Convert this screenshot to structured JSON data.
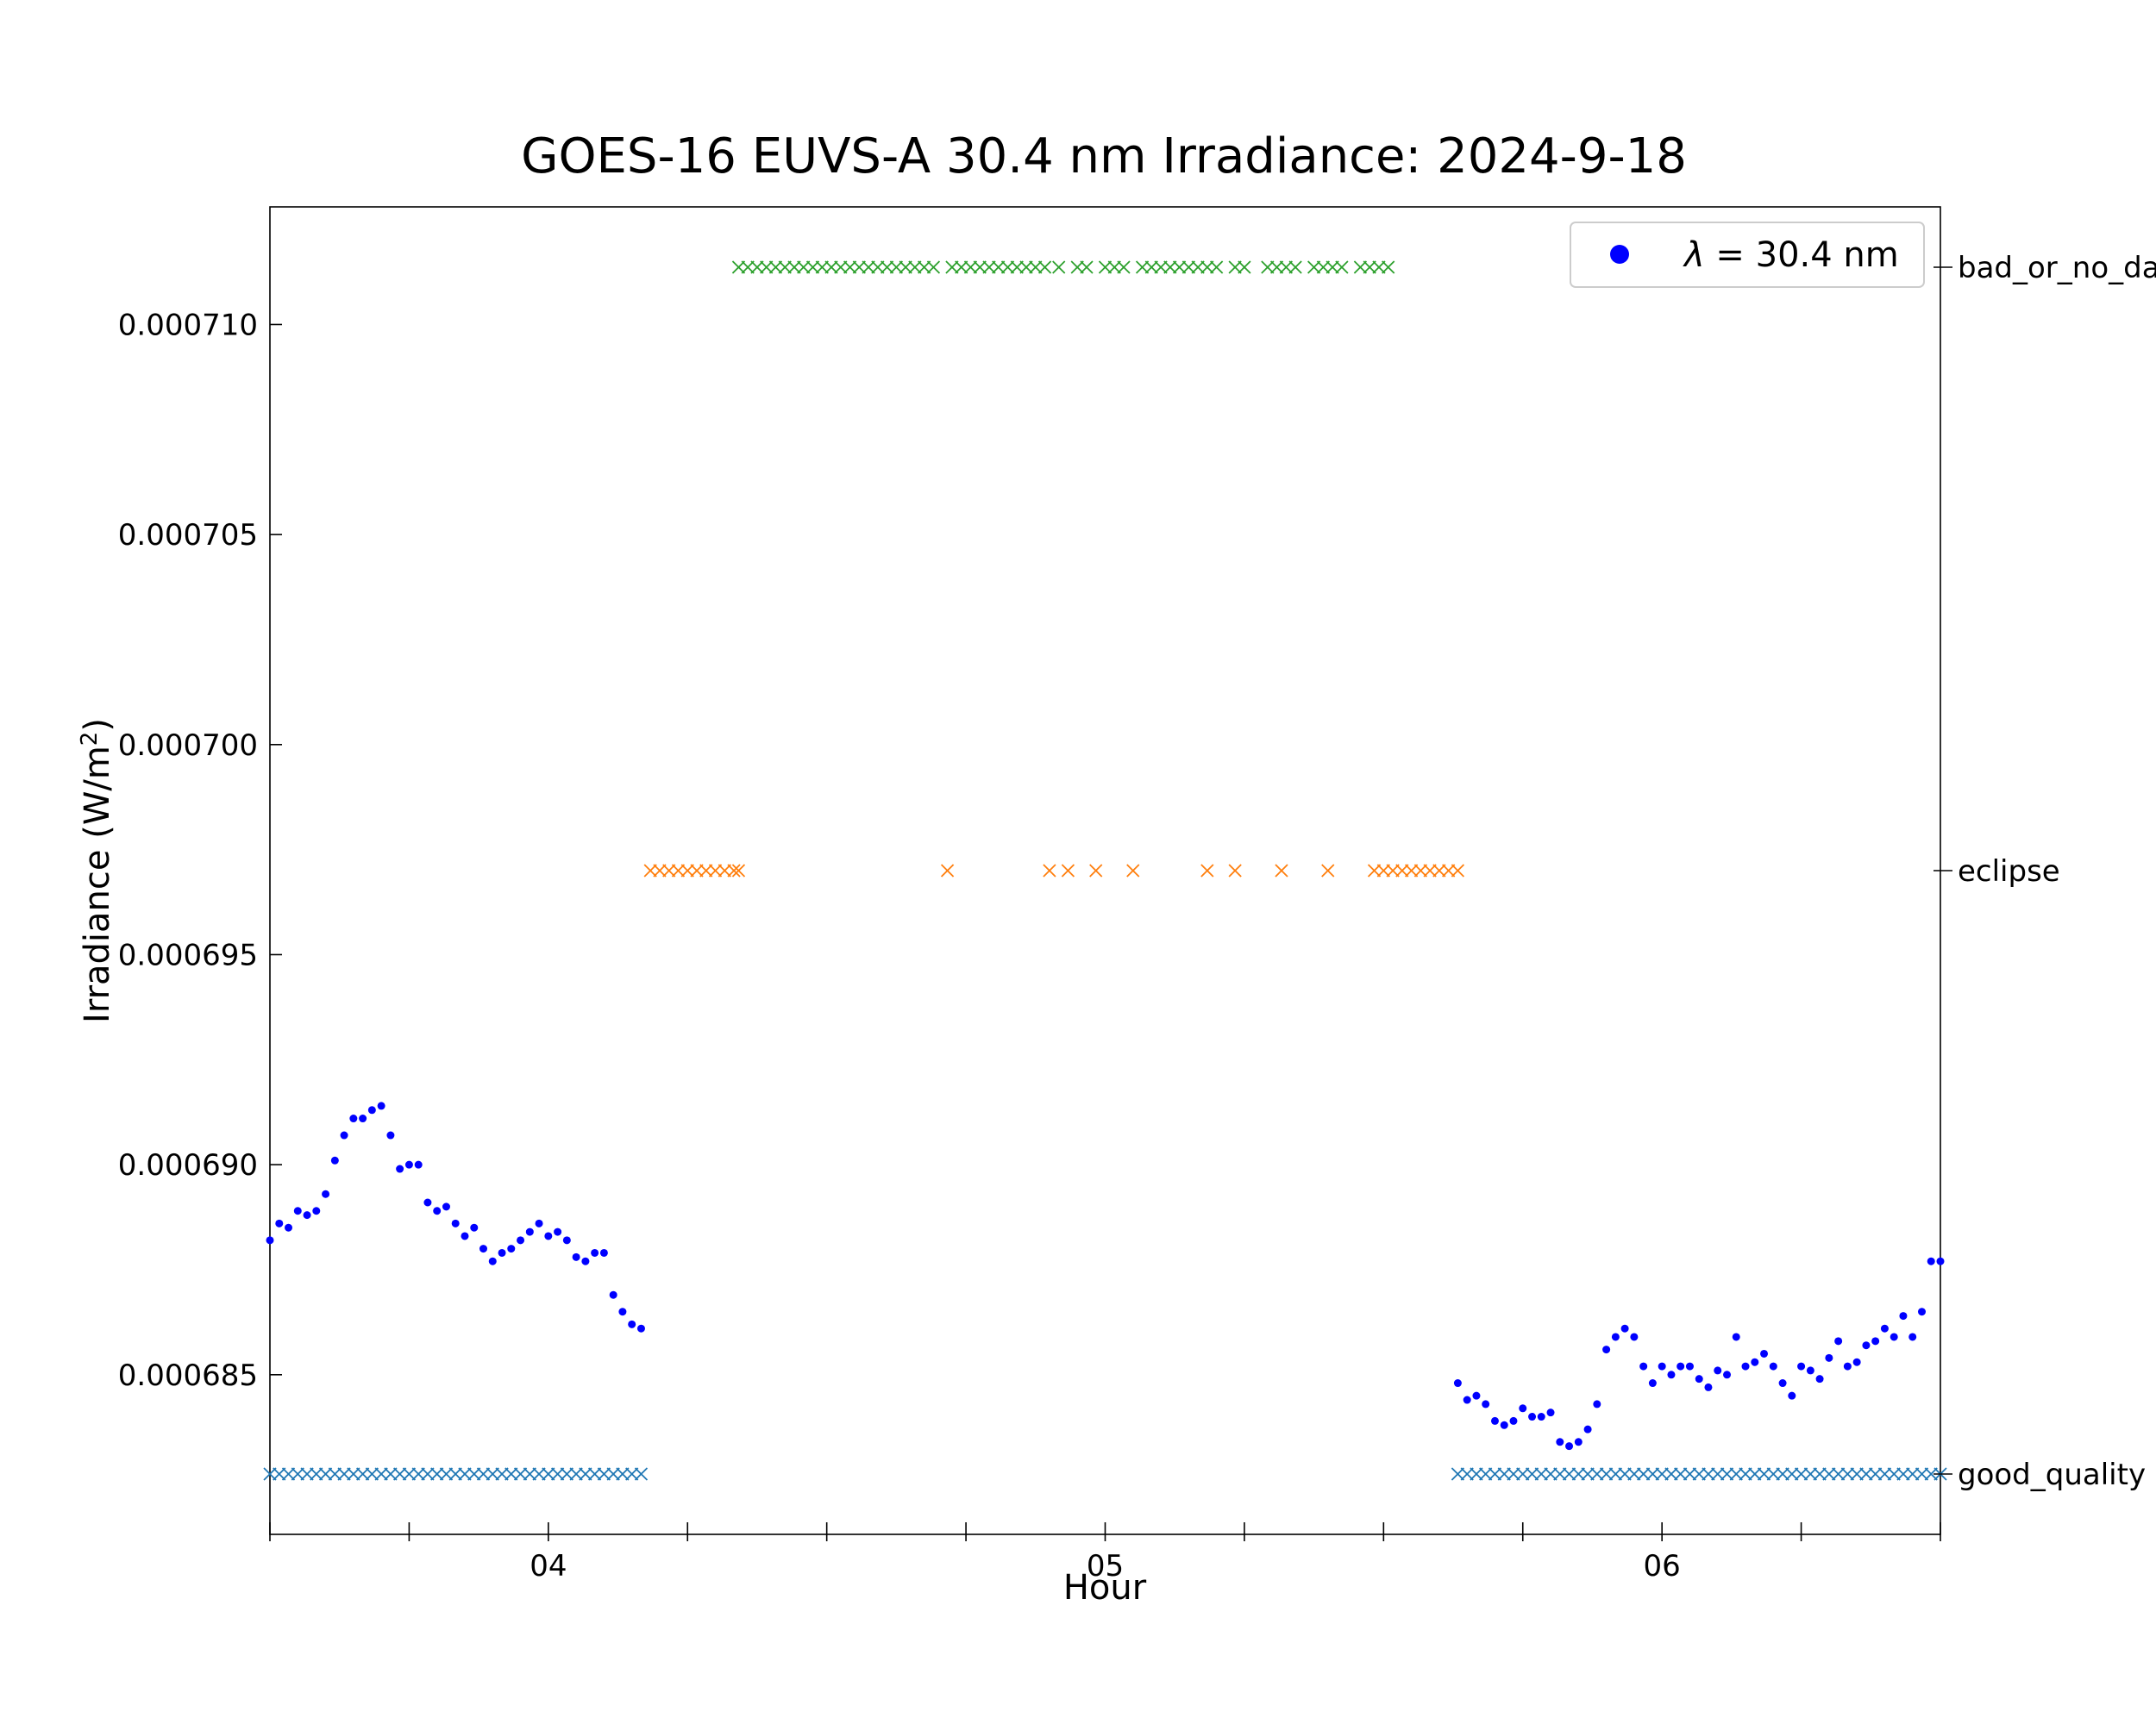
{
  "chart_data": {
    "type": "scatter",
    "title": "GOES-16 EUVS-A 30.4 nm Irradiance: 2024-9-18",
    "xlabel": "Hour",
    "ylabel": "Irradiance (W/m",
    "ylabel_sup": "2",
    "ylabel_close": ")",
    "xlim": [
      3.5,
      6.5
    ],
    "ylim": [
      0.0006812,
      0.0007128
    ],
    "xticks": [
      {
        "value": 4,
        "label": "04"
      },
      {
        "value": 5,
        "label": "05"
      },
      {
        "value": 6,
        "label": "06"
      }
    ],
    "yticks": [
      {
        "value": 0.000685,
        "label": "0.000685"
      },
      {
        "value": 0.00069,
        "label": "0.000690"
      },
      {
        "value": 0.000695,
        "label": "0.000695"
      },
      {
        "value": 0.0007,
        "label": "0.000700"
      },
      {
        "value": 0.000705,
        "label": "0.000705"
      },
      {
        "value": 0.00071,
        "label": "0.000710"
      }
    ],
    "legend": {
      "position": "top-right",
      "label_prefix": "λ",
      "label_rest": " = 30.4 nm",
      "color": "#0000ff"
    },
    "series": [
      {
        "name": "λ = 30.4 nm",
        "color": "#0000ff",
        "x": [
          3.5,
          3.5167,
          3.5333,
          3.55,
          3.5667,
          3.5833,
          3.6,
          3.6167,
          3.6333,
          3.65,
          3.6667,
          3.6833,
          3.7,
          3.7167,
          3.7333,
          3.75,
          3.7667,
          3.7833,
          3.8,
          3.8167,
          3.8333,
          3.85,
          3.8667,
          3.8833,
          3.9,
          3.9167,
          3.9333,
          3.95,
          3.9667,
          3.9833,
          4.0,
          4.0167,
          4.0333,
          4.05,
          4.0667,
          4.0833,
          4.1,
          4.1167,
          4.1333,
          4.15,
          4.1667,
          5.6333,
          5.65,
          5.6667,
          5.6833,
          5.7,
          5.7167,
          5.7333,
          5.75,
          5.7667,
          5.7833,
          5.8,
          5.8167,
          5.8333,
          5.85,
          5.8667,
          5.8833,
          5.9,
          5.9167,
          5.9333,
          5.95,
          5.9667,
          5.9833,
          6.0,
          6.0167,
          6.0333,
          6.05,
          6.0667,
          6.0833,
          6.1,
          6.1167,
          6.1333,
          6.15,
          6.1667,
          6.1833,
          6.2,
          6.2167,
          6.2333,
          6.25,
          6.2667,
          6.2833,
          6.3,
          6.3167,
          6.3333,
          6.35,
          6.3667,
          6.3833,
          6.4,
          6.4167,
          6.4333,
          6.45,
          6.4667,
          6.4833,
          6.5
        ],
        "y": [
          0.0006882,
          0.0006886,
          0.0006885,
          0.0006889,
          0.0006888,
          0.0006889,
          0.0006893,
          0.0006901,
          0.0006907,
          0.0006911,
          0.0006911,
          0.0006913,
          0.0006914,
          0.0006907,
          0.0006899,
          0.00069,
          0.00069,
          0.0006891,
          0.0006889,
          0.000689,
          0.0006886,
          0.0006883,
          0.0006885,
          0.000688,
          0.0006877,
          0.0006879,
          0.000688,
          0.0006882,
          0.0006884,
          0.0006886,
          0.0006883,
          0.0006884,
          0.0006882,
          0.0006878,
          0.0006877,
          0.0006879,
          0.0006879,
          0.0006869,
          0.0006865,
          0.0006862,
          0.0006861,
          0.0006848,
          0.0006844,
          0.0006845,
          0.0006843,
          0.0006839,
          0.0006838,
          0.0006839,
          0.0006842,
          0.000684,
          0.000684,
          0.0006841,
          0.0006834,
          0.0006833,
          0.0006834,
          0.0006837,
          0.0006843,
          0.0006856,
          0.0006859,
          0.0006861,
          0.0006859,
          0.0006852,
          0.0006848,
          0.0006852,
          0.000685,
          0.0006852,
          0.0006852,
          0.0006849,
          0.0006847,
          0.0006851,
          0.000685,
          0.0006859,
          0.0006852,
          0.0006853,
          0.0006855,
          0.0006852,
          0.0006848,
          0.0006845,
          0.0006852,
          0.0006851,
          0.0006849,
          0.0006854,
          0.0006858,
          0.0006852,
          0.0006853,
          0.0006857,
          0.0006858,
          0.0006861,
          0.0006859,
          0.0006864,
          0.0006859,
          0.0006865,
          0.0006877,
          0.0006877
        ]
      }
    ],
    "flags": [
      {
        "name": "bad_or_no_data",
        "label": "bad_or_no_da",
        "color": "#2ca02c",
        "x": [
          4.3417,
          4.3583,
          4.375,
          4.3917,
          4.4083,
          4.425,
          4.4417,
          4.4583,
          4.475,
          4.4917,
          4.5083,
          4.525,
          4.5417,
          4.5583,
          4.575,
          4.5917,
          4.6083,
          4.625,
          4.6417,
          4.6583,
          4.675,
          4.6917,
          4.725,
          4.7417,
          4.7583,
          4.775,
          4.7917,
          4.8083,
          4.825,
          4.8417,
          4.8583,
          4.875,
          4.8917,
          4.9167,
          4.95,
          4.9667,
          5.0,
          5.0167,
          5.0333,
          5.0667,
          5.0833,
          5.1,
          5.1167,
          5.1333,
          5.15,
          5.1667,
          5.1833,
          5.2,
          5.2333,
          5.25,
          5.2917,
          5.3083,
          5.325,
          5.3417,
          5.375,
          5.3917,
          5.4083,
          5.425,
          5.4583,
          5.475,
          5.4917,
          5.5083
        ]
      },
      {
        "name": "eclipse",
        "label": "eclipse",
        "color": "#ff7f0e",
        "x": [
          4.1833,
          4.2,
          4.2167,
          4.2333,
          4.25,
          4.2667,
          4.2833,
          4.3,
          4.3167,
          4.3333,
          4.3417,
          4.7167,
          4.9,
          4.9333,
          4.9833,
          5.05,
          5.1833,
          5.2333,
          5.3167,
          5.4,
          5.4833,
          5.5,
          5.5167,
          5.5333,
          5.55,
          5.5667,
          5.5833,
          5.6,
          5.6167,
          5.6333
        ]
      },
      {
        "name": "good_quality",
        "label": "good_quality",
        "color": "#1f77b4",
        "x": [
          3.5,
          3.5167,
          3.5333,
          3.55,
          3.5667,
          3.5833,
          3.6,
          3.6167,
          3.6333,
          3.65,
          3.6667,
          3.6833,
          3.7,
          3.7167,
          3.7333,
          3.75,
          3.7667,
          3.7833,
          3.8,
          3.8167,
          3.8333,
          3.85,
          3.8667,
          3.8833,
          3.9,
          3.9167,
          3.9333,
          3.95,
          3.9667,
          3.9833,
          4.0,
          4.0167,
          4.0333,
          4.05,
          4.0667,
          4.0833,
          4.1,
          4.1167,
          4.1333,
          4.15,
          4.1667,
          5.6333,
          5.65,
          5.6667,
          5.6833,
          5.7,
          5.7167,
          5.7333,
          5.75,
          5.7667,
          5.7833,
          5.8,
          5.8167,
          5.8333,
          5.85,
          5.8667,
          5.8833,
          5.9,
          5.9167,
          5.9333,
          5.95,
          5.9667,
          5.9833,
          6.0,
          6.0167,
          6.0333,
          6.05,
          6.0667,
          6.0833,
          6.1,
          6.1167,
          6.1333,
          6.15,
          6.1667,
          6.1833,
          6.2,
          6.2167,
          6.2333,
          6.25,
          6.2667,
          6.2833,
          6.3,
          6.3167,
          6.3333,
          6.35,
          6.3667,
          6.3833,
          6.4,
          6.4167,
          6.4333,
          6.45,
          6.4667,
          6.4833,
          6.5
        ]
      }
    ]
  }
}
